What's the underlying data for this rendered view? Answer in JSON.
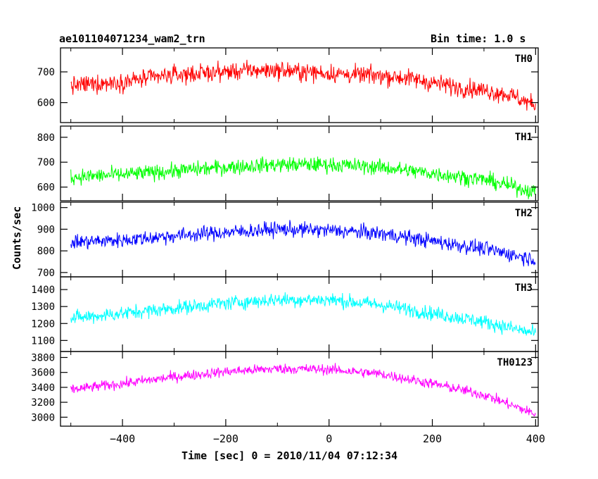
{
  "header": {
    "title": "ae101104071234_wam2_trn",
    "bin_time": "Bin time: 1.0 s"
  },
  "chart_data": {
    "type": "line",
    "xlabel": "Time [sec] 0 = 2010/11/04 07:12:34",
    "ylabel": "Counts/sec",
    "xlim": [
      -520,
      405
    ],
    "data_x_range": [
      -500,
      400
    ],
    "xticks": [
      -400,
      -200,
      0,
      200,
      400
    ],
    "panels": [
      {
        "name": "TH0",
        "color": "#ff0000",
        "ylim": [
          535,
          778
        ],
        "yticks": [
          600,
          700
        ],
        "trend_x": [
          -500,
          -400,
          -300,
          -200,
          -150,
          -100,
          -50,
          0,
          50,
          100,
          150,
          200,
          250,
          300,
          350,
          400
        ],
        "trend_y": [
          655,
          668,
          690,
          700,
          705,
          705,
          700,
          695,
          690,
          688,
          680,
          665,
          650,
          640,
          625,
          590
        ],
        "noise": 38
      },
      {
        "name": "TH1",
        "color": "#00ff00",
        "ylim": [
          545,
          845
        ],
        "yticks": [
          600,
          700,
          800
        ],
        "trend_x": [
          -500,
          -400,
          -300,
          -200,
          -100,
          0,
          100,
          200,
          300,
          400
        ],
        "trend_y": [
          640,
          650,
          665,
          680,
          690,
          690,
          680,
          655,
          630,
          580
        ],
        "noise": 40
      },
      {
        "name": "TH2",
        "color": "#0000ff",
        "ylim": [
          680,
          1025
        ],
        "yticks": [
          700,
          800,
          900,
          1000
        ],
        "trend_x": [
          -500,
          -400,
          -300,
          -200,
          -100,
          0,
          100,
          200,
          300,
          400
        ],
        "trend_y": [
          840,
          850,
          870,
          885,
          900,
          895,
          880,
          845,
          810,
          760
        ],
        "noise": 45
      },
      {
        "name": "TH3",
        "color": "#00ffff",
        "ylim": [
          1035,
          1475
        ],
        "yticks": [
          1100,
          1200,
          1300,
          1400
        ],
        "trend_x": [
          -500,
          -400,
          -300,
          -200,
          -100,
          0,
          100,
          200,
          300,
          400
        ],
        "trend_y": [
          1230,
          1260,
          1290,
          1320,
          1340,
          1340,
          1310,
          1260,
          1210,
          1140
        ],
        "noise": 55
      },
      {
        "name": "TH0123",
        "color": "#ff00ff",
        "ylim": [
          2880,
          3880
        ],
        "yticks": [
          3000,
          3200,
          3400,
          3600,
          3800
        ],
        "trend_x": [
          -500,
          -400,
          -300,
          -200,
          -100,
          0,
          100,
          200,
          300,
          400
        ],
        "trend_y": [
          3370,
          3450,
          3540,
          3610,
          3650,
          3640,
          3580,
          3450,
          3300,
          3040
        ],
        "noise": 90
      }
    ]
  }
}
